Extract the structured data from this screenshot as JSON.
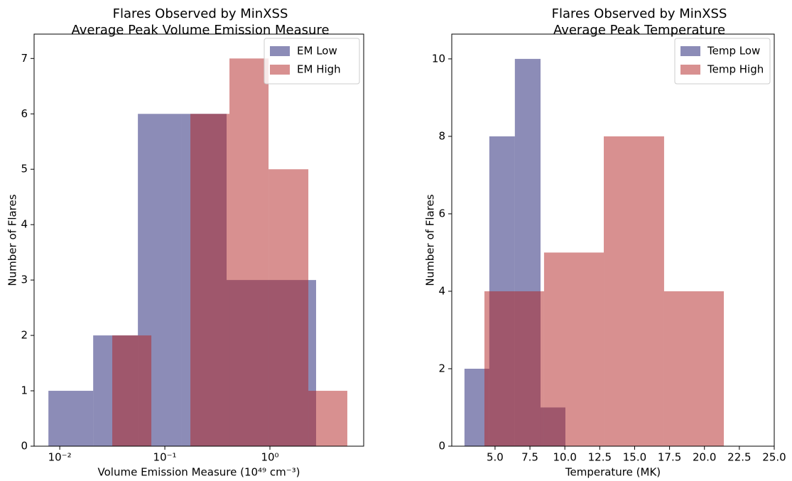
{
  "chart_data": [
    {
      "type": "histogram",
      "title": "Flares Observed by MinXSS",
      "subtitle": "Average Peak Volume Emission Measure",
      "x_label": "Volume Emission Measure (10⁴⁹ cm⁻³)",
      "y_label": "Number of Flares",
      "xscale": "log",
      "xlim": [
        0.0057,
        7.8
      ],
      "ylim": [
        0,
        7.44
      ],
      "xticks": [
        {
          "value": 0.01,
          "label": "10⁻²"
        },
        {
          "value": 0.1,
          "label": "10⁻¹"
        },
        {
          "value": 1,
          "label": "10⁰"
        }
      ],
      "yticks": [
        0,
        1,
        2,
        3,
        4,
        5,
        6,
        7
      ],
      "legend": "upper right",
      "alpha": 0.5,
      "series": [
        {
          "name": "EM Low",
          "color": "#191970",
          "bins": [
            0.0078,
            0.0208,
            0.0554,
            0.145,
            0.387,
            1.03,
            2.75
          ],
          "values": [
            1,
            2,
            6,
            6,
            3,
            3
          ]
        },
        {
          "name": "EM High",
          "color": "#b22222",
          "bins": [
            0.0316,
            0.0744,
            0.175,
            0.412,
            0.97,
            2.32,
            5.45
          ],
          "values": [
            2,
            0,
            6,
            7,
            5,
            1
          ]
        }
      ]
    },
    {
      "type": "histogram",
      "title": "Flares Observed by MinXSS",
      "subtitle": "Average Peak Temperature",
      "x_label": "Temperature (MK)",
      "y_label": "Number of Flares",
      "xscale": "linear",
      "xlim": [
        1.9,
        25.0
      ],
      "ylim": [
        0,
        10.64
      ],
      "xticks": [
        {
          "value": 5,
          "label": "5.0"
        },
        7.5,
        {
          "value": 10,
          "label": "10.0"
        },
        12.5,
        {
          "value": 15,
          "label": "15.0"
        },
        17.5,
        {
          "value": 20,
          "label": "20.0"
        },
        22.5,
        {
          "value": 25,
          "label": "25.0"
        }
      ],
      "yticks": [
        0,
        2,
        4,
        6,
        8,
        10
      ],
      "legend": "upper right",
      "alpha": 0.5,
      "series": [
        {
          "name": "Temp Low",
          "color": "#191970",
          "bins": [
            2.81,
            4.59,
            6.42,
            8.26,
            10.04
          ],
          "values": [
            2,
            8,
            10,
            1
          ]
        },
        {
          "name": "Temp High",
          "color": "#b22222",
          "bins": [
            4.24,
            8.51,
            12.79,
            17.11,
            21.39
          ],
          "values": [
            4,
            5,
            8,
            4
          ]
        }
      ]
    }
  ]
}
